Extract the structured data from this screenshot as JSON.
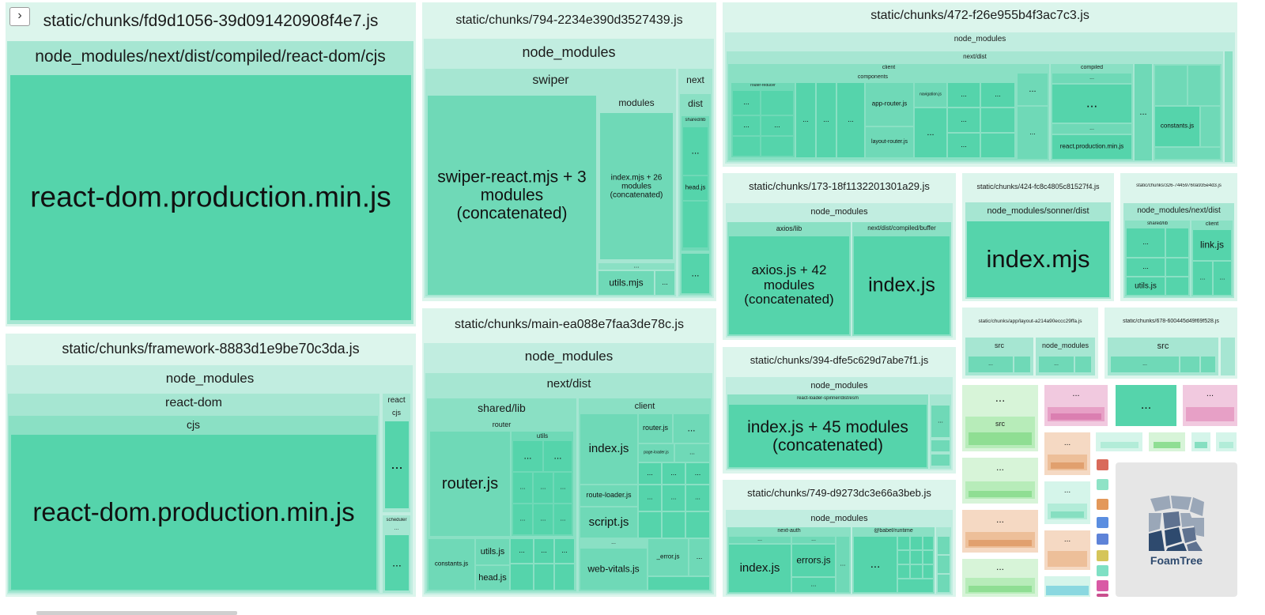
{
  "sidebar": {
    "toggle_glyph": "›"
  },
  "chunks": {
    "fd9": {
      "title": "static/chunks/fd9d1056-39d091420908f4e7.js",
      "group": "node_modules/next/dist/compiled/react-dom/cjs",
      "file": "react-dom.production.min.js"
    },
    "framework": {
      "title": "static/chunks/framework-8883d1e9be70c3da.js",
      "node_modules": "node_modules",
      "react_dom": "react-dom",
      "cjs": "cjs",
      "file": "react-dom.production.min.js",
      "react": "react",
      "react_cjs": "cjs",
      "react_more": "...",
      "scheduler": "scheduler",
      "scheduler_more": "...",
      "scheduler_dots": "..."
    },
    "c794": {
      "title": "static/chunks/794-2234e390d3527439.js",
      "node_modules": "node_modules",
      "swiper": "swiper",
      "swiper_react": "swiper-react.mjs + 3 modules (concatenated)",
      "modules": "modules",
      "index_concat": "index.mjs + 26 modules (concatenated)",
      "more": "...",
      "utils": "utils.mjs",
      "utils_more": "...",
      "next": "next",
      "dist": "dist",
      "shared_lib": "shared/lib",
      "dots1": "...",
      "head": "head.js",
      "dots2": "..."
    },
    "main": {
      "title": "static/chunks/main-ea088e7faa3de78c.js",
      "node_modules": "node_modules",
      "next_dist": "next/dist",
      "shared_lib": "shared/lib",
      "router": "router",
      "utils": "utils",
      "router_js": "router.js",
      "constants": "constants.js",
      "utils_js": "utils.js",
      "head": "head.js",
      "client": "client",
      "index": "index.js",
      "router_js2": "router.js",
      "page_loader": "page-loader.js",
      "route_loader": "route-loader.js",
      "script": "script.js",
      "web_vitals": "web-vitals.js",
      "error": "_error.js",
      "dots": "..."
    },
    "c472": {
      "title": "static/chunks/472-f26e955b4f3ac7c3.js",
      "node_modules": "node_modules",
      "next_dist": "next/dist",
      "client": "client",
      "components": "components",
      "router_reducer": "router-reducer",
      "app_router": "app-router.js",
      "navigation": "navigation.js",
      "layout_router": "layout-router.js",
      "compiled": "compiled",
      "react_prod": "react.production.min.js",
      "constants": "constants.js",
      "dots": "..."
    },
    "c173": {
      "title": "static/chunks/173-18f1132201301a29.js",
      "node_modules": "node_modules",
      "axios_lib": "axios/lib",
      "axios_concat": "axios.js + 42 modules (concatenated)",
      "buffer": "next/dist/compiled/buffer",
      "index": "index.js"
    },
    "c424": {
      "title": "static/chunks/424-fc8c4805c81527f4.js",
      "group": "node_modules/sonner/dist",
      "file": "index.mjs"
    },
    "c326": {
      "title": "static/chunks/326-74459760a935e4d3.js",
      "group": "node_modules/next/dist",
      "shared_lib": "shared/lib",
      "client": "client",
      "link": "link.js",
      "utils": "utils.js",
      "dots": "..."
    },
    "c394": {
      "title": "static/chunks/394-dfe5c629d7abe7f1.js",
      "node_modules": "node_modules",
      "spinner": "react-loader-spinner/dist/esm",
      "index_concat": "index.js + 45 modules (concatenated)",
      "dots": "..."
    },
    "layout": {
      "title": "static/chunks/app/layout-a214a90eccc29ffa.js",
      "src": "src",
      "node_modules": "node_modules",
      "dots": "..."
    },
    "c678": {
      "title": "static/chunks/678-600445d49f69f528.js",
      "src": "src",
      "dots": "..."
    },
    "c749": {
      "title": "static/chunks/749-d9273dc3e66a3beb.js",
      "node_modules": "node_modules",
      "next_auth": "next-auth",
      "babel": "@babel/runtime",
      "index": "index.js",
      "errors": "errors.js",
      "dots": "..."
    },
    "misc": {
      "src": "src",
      "dots": "..."
    }
  },
  "brand": {
    "name": "FoamTree"
  },
  "colors": {
    "leaf": "#55d4ab",
    "root": "#dcf5ec",
    "logo_dark": "#2e4a6e",
    "logo_light": "#9aa7b8",
    "swatches": [
      "#d96a5a",
      "#8fe3c6",
      "#e3985a",
      "#5b8ee0",
      "#5e83d8",
      "#d5c55a",
      "#7fe0c4",
      "#d95aa5",
      "#c94f8e"
    ]
  }
}
